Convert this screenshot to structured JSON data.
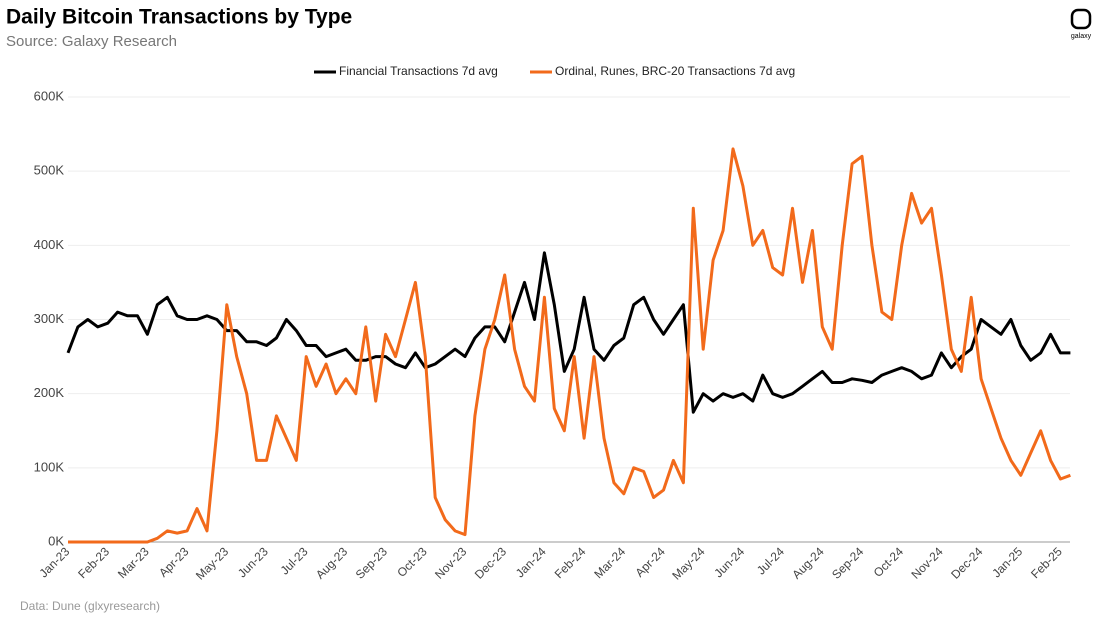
{
  "chart_data": {
    "type": "line",
    "title": "Daily Bitcoin Transactions by Type",
    "subtitle": "Source: Galaxy Research",
    "source": "Data: Dune (glxyresearch)",
    "brand": "galaxy",
    "categories": [
      "Jan-23",
      null,
      null,
      null,
      "Feb-23",
      null,
      null,
      null,
      "Mar-23",
      null,
      null,
      null,
      "Apr-23",
      null,
      null,
      null,
      "May-23",
      null,
      null,
      null,
      "Jun-23",
      null,
      null,
      null,
      "Jul-23",
      null,
      null,
      null,
      "Aug-23",
      null,
      null,
      null,
      "Sep-23",
      null,
      null,
      null,
      "Oct-23",
      null,
      null,
      null,
      "Nov-23",
      null,
      null,
      null,
      "Dec-23",
      null,
      null,
      null,
      "Jan-24",
      null,
      null,
      null,
      "Feb-24",
      null,
      null,
      null,
      "Mar-24",
      null,
      null,
      null,
      "Apr-24",
      null,
      null,
      null,
      "May-24",
      null,
      null,
      null,
      "Jun-24",
      null,
      null,
      null,
      "Jul-24",
      null,
      null,
      null,
      "Aug-24",
      null,
      null,
      null,
      "Sep-24",
      null,
      null,
      null,
      "Oct-24",
      null,
      null,
      null,
      "Nov-24",
      null,
      null,
      null,
      "Dec-24",
      null,
      null,
      null,
      "Jan-25",
      null,
      null,
      null,
      "Feb-25",
      null
    ],
    "series": [
      {
        "name": "Financial Transactions 7d avg",
        "color": "#000000",
        "values": [
          255000,
          290000,
          300000,
          290000,
          295000,
          310000,
          305000,
          305000,
          280000,
          320000,
          330000,
          305000,
          300000,
          300000,
          305000,
          300000,
          285000,
          285000,
          270000,
          270000,
          265000,
          275000,
          300000,
          285000,
          265000,
          265000,
          250000,
          255000,
          260000,
          245000,
          245000,
          250000,
          250000,
          240000,
          235000,
          255000,
          235000,
          240000,
          250000,
          260000,
          250000,
          275000,
          290000,
          290000,
          270000,
          310000,
          350000,
          300000,
          390000,
          320000,
          230000,
          260000,
          330000,
          260000,
          245000,
          265000,
          275000,
          320000,
          330000,
          300000,
          280000,
          300000,
          320000,
          175000,
          200000,
          190000,
          200000,
          195000,
          200000,
          190000,
          225000,
          200000,
          195000,
          200000,
          210000,
          220000,
          230000,
          215000,
          215000,
          220000,
          218000,
          215000,
          225000,
          230000,
          235000,
          230000,
          220000,
          225000,
          255000,
          235000,
          250000,
          260000,
          300000,
          290000,
          280000,
          300000,
          265000,
          245000,
          255000,
          280000,
          255000,
          255000
        ]
      },
      {
        "name": "Ordinal, Runes, BRC-20 Transactions 7d avg",
        "color": "#f26a1b",
        "values": [
          0,
          0,
          0,
          0,
          0,
          0,
          0,
          0,
          0,
          5000,
          15000,
          12000,
          15000,
          45000,
          15000,
          150000,
          320000,
          250000,
          200000,
          110000,
          110000,
          170000,
          140000,
          110000,
          250000,
          210000,
          240000,
          200000,
          220000,
          200000,
          290000,
          190000,
          280000,
          250000,
          300000,
          350000,
          250000,
          60000,
          30000,
          15000,
          10000,
          170000,
          260000,
          300000,
          360000,
          260000,
          210000,
          190000,
          330000,
          180000,
          150000,
          250000,
          140000,
          250000,
          140000,
          80000,
          65000,
          100000,
          95000,
          60000,
          70000,
          110000,
          80000,
          450000,
          260000,
          380000,
          420000,
          530000,
          480000,
          400000,
          420000,
          370000,
          360000,
          450000,
          350000,
          420000,
          290000,
          260000,
          400000,
          510000,
          520000,
          400000,
          310000,
          300000,
          400000,
          470000,
          430000,
          450000,
          360000,
          260000,
          230000,
          330000,
          220000,
          180000,
          140000,
          110000,
          90000,
          120000,
          150000,
          110000,
          85000,
          90000
        ]
      }
    ],
    "ylim": [
      0,
      600000
    ],
    "yticks": [
      {
        "value": 0,
        "label": "0K"
      },
      {
        "value": 100000,
        "label": "100K"
      },
      {
        "value": 200000,
        "label": "200K"
      },
      {
        "value": 300000,
        "label": "300K"
      },
      {
        "value": 400000,
        "label": "400K"
      },
      {
        "value": 500000,
        "label": "500K"
      },
      {
        "value": 600000,
        "label": "600K"
      }
    ],
    "grid": true
  }
}
